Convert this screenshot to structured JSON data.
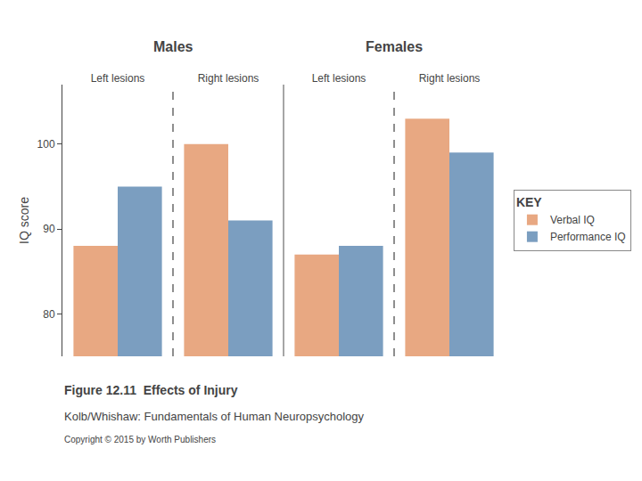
{
  "chart_data": {
    "type": "bar",
    "categories": [
      "Left lesions",
      "Right lesions",
      "Left lesions",
      "Right lesions"
    ],
    "groups": [
      "Males",
      "Females"
    ],
    "series": [
      {
        "name": "Verbal IQ",
        "color": "#E8A882",
        "values": [
          88,
          100,
          87,
          103
        ]
      },
      {
        "name": "Performance IQ",
        "color": "#7B9EC0",
        "values": [
          95,
          91,
          88,
          99
        ]
      }
    ],
    "ylabel": "IQ score",
    "ylim": [
      75,
      107
    ],
    "yticks": [
      80,
      90,
      100
    ],
    "grid": false,
    "legend": "right",
    "legend_title": "KEY",
    "caption": [
      "Figure 12.11  Effects of Injury",
      "Kolb/Whishaw: Fundamentals of Human Neuropsychology",
      "Copyright © 2015 by Worth Publishers"
    ]
  }
}
